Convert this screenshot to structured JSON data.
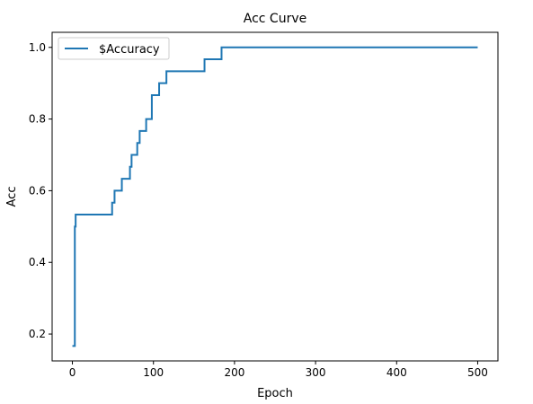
{
  "chart_data": {
    "type": "line",
    "title": "Acc Curve",
    "xlabel": "Epoch",
    "ylabel": "Acc",
    "xlim": [
      -25,
      525
    ],
    "ylim": [
      0.125,
      1.042
    ],
    "x_ticks": [
      0,
      100,
      200,
      300,
      400,
      500
    ],
    "y_ticks": [
      0.2,
      0.4,
      0.6,
      0.8,
      1.0
    ],
    "x_tick_labels": [
      "0",
      "100",
      "200",
      "300",
      "400",
      "500"
    ],
    "y_tick_labels": [
      "0.2",
      "0.4",
      "0.6",
      "0.8",
      "1.0"
    ],
    "grid": false,
    "legend_position": "top-left",
    "series": [
      {
        "name": "$Accuracy",
        "color": "#1f77b4",
        "x": [
          0,
          3,
          3,
          4,
          4,
          5,
          5,
          49,
          49,
          52,
          52,
          55,
          55,
          61,
          61,
          63,
          63,
          71,
          71,
          73,
          73,
          76,
          76,
          80,
          80,
          83,
          83,
          91,
          91,
          93,
          93,
          98,
          98,
          107,
          107,
          116,
          116,
          163,
          163,
          184,
          184,
          500
        ],
        "y": [
          0.1667,
          0.1667,
          0.5,
          0.5,
          0.5333,
          0.5333,
          0.5333,
          0.5333,
          0.5667,
          0.5667,
          0.6,
          0.6,
          0.6,
          0.6,
          0.6333,
          0.6333,
          0.6333,
          0.6333,
          0.6667,
          0.6667,
          0.7,
          0.7,
          0.7,
          0.7,
          0.7333,
          0.7333,
          0.7667,
          0.7667,
          0.8,
          0.8,
          0.8,
          0.8,
          0.8667,
          0.8667,
          0.9,
          0.9,
          0.9333,
          0.9333,
          0.9667,
          0.9667,
          1.0,
          1.0
        ]
      }
    ]
  }
}
